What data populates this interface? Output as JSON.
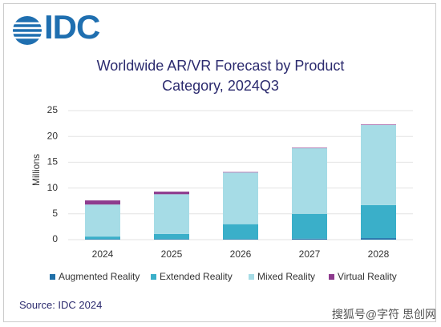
{
  "logo": "IDC",
  "chart_data": {
    "type": "stacked_bar",
    "title": "Worldwide AR/VR Forecast by Product Category, 2024Q3",
    "y_label": "Millions",
    "categories": [
      "2024",
      "2025",
      "2026",
      "2027",
      "2028"
    ],
    "series": [
      {
        "name": "Augmented Reality",
        "color": "#1f6fa8",
        "values": [
          0.1,
          0.1,
          0.1,
          0.2,
          0.3
        ]
      },
      {
        "name": "Extended Reality",
        "color": "#3aafc9",
        "values": [
          0.5,
          1.0,
          2.9,
          4.8,
          6.4
        ]
      },
      {
        "name": "Mixed Reality",
        "color": "#a6dce6",
        "values": [
          6.2,
          7.7,
          10.0,
          12.7,
          15.5
        ]
      },
      {
        "name": "Virtual Reality",
        "color": "#8e3b8e",
        "values": [
          0.8,
          0.5,
          0.1,
          0.1,
          0.1
        ]
      }
    ],
    "ylim": [
      0,
      25
    ],
    "yticks": [
      0,
      5,
      10,
      15,
      20,
      25
    ],
    "grid": true,
    "legend": "bottom"
  },
  "source": "Source: IDC 2024",
  "watermark": "搜狐号@字符 思创网"
}
